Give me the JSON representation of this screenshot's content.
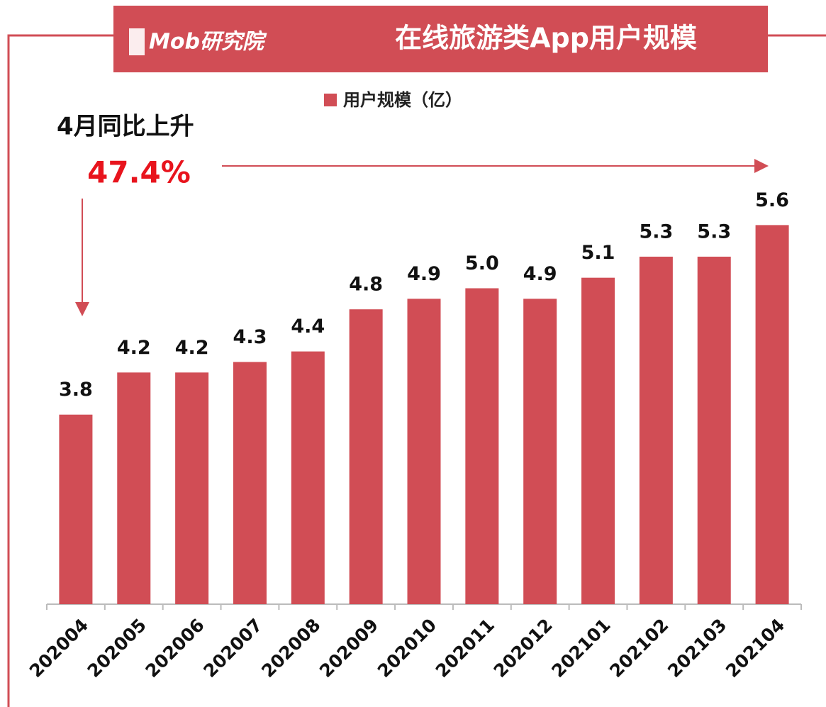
{
  "chart_data": {
    "type": "bar",
    "title": "在线旅游类App用户规模",
    "brand": "Mob研究院",
    "annotation": "4月同比上升",
    "annotation_value": "47.4%",
    "categories": [
      "202004",
      "202005",
      "202006",
      "202007",
      "202008",
      "202009",
      "202010",
      "202011",
      "202012",
      "202101",
      "202102",
      "202103",
      "202104"
    ],
    "series": [
      {
        "name": "用户规模（亿）",
        "color": "#d14d55",
        "values": [
          3.8,
          4.2,
          4.2,
          4.3,
          4.4,
          4.8,
          4.9,
          5.0,
          4.9,
          5.1,
          5.3,
          5.3,
          5.6
        ],
        "value_labels": [
          "3.8",
          "4.2",
          "4.2",
          "4.3",
          "4.4",
          "4.8",
          "4.9",
          "5.0",
          "4.9",
          "5.1",
          "5.3",
          "5.3",
          "5.6"
        ]
      }
    ],
    "ylim": [
      2,
      6
    ]
  }
}
